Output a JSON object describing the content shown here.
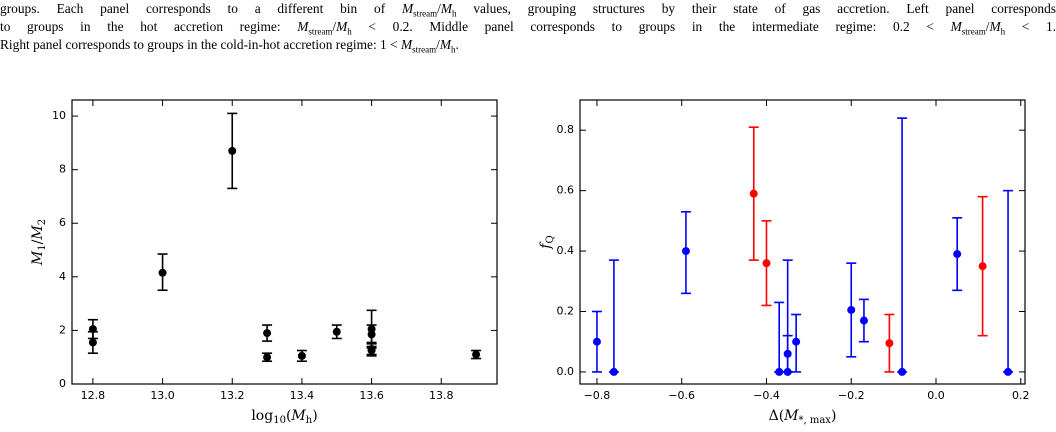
{
  "caption": [
    [
      "groups. Each panel corresponds to a different bin of ",
      {
        "sym": "M",
        "sub": "stream"
      },
      "/",
      {
        "sym": "M",
        "sub": "h"
      },
      " values, grouping structures by their state of gas accretion. Left panel corresponds"
    ],
    [
      "to groups in the hot accretion regime: ",
      {
        "sym": "M",
        "sub": "stream"
      },
      "/",
      {
        "sym": "M",
        "sub": "h"
      },
      " < 0.2. Middle panel corresponds to groups in the intermediate regime: 0.2 < ",
      {
        "sym": "M",
        "sub": "stream"
      },
      "/",
      {
        "sym": "M",
        "sub": "h"
      },
      " < 1."
    ],
    [
      "Right panel corresponds to groups in the cold-in-hot accretion regime: 1 < ",
      {
        "sym": "M",
        "sub": "stream"
      },
      "/",
      {
        "sym": "M",
        "sub": "h"
      },
      "."
    ]
  ],
  "chart_data": [
    {
      "type": "scatter",
      "xlabel": [
        {
          "text": "log",
          "sub": "10"
        },
        "(",
        {
          "sym": "M",
          "sub": "h"
        },
        ")"
      ],
      "ylabel": [
        {
          "sym": "M",
          "sub": "1"
        },
        "/",
        {
          "sym": "M",
          "sub": "2"
        }
      ],
      "xlim": [
        12.74,
        13.96
      ],
      "ylim": [
        0,
        10.6
      ],
      "xticks": [
        {
          "value": 12.8,
          "label": "12.8"
        },
        {
          "value": 13,
          "label": "13.0"
        },
        {
          "value": 13.2,
          "label": "13.2"
        },
        {
          "value": 13.4,
          "label": "13.4"
        },
        {
          "value": 13.6,
          "label": "13.6"
        },
        {
          "value": 13.8,
          "label": "13.8"
        }
      ],
      "yticks": [
        0,
        2,
        4,
        6,
        8,
        10
      ],
      "series": [
        {
          "color": "#000000",
          "x": [
            12.8,
            12.8,
            13.0,
            13.2,
            13.3,
            13.3,
            13.4,
            13.5,
            13.6,
            13.6,
            13.6,
            13.6,
            13.9
          ],
          "y": [
            2.05,
            1.55,
            4.15,
            8.7,
            1.9,
            1.0,
            1.05,
            1.95,
            2.05,
            1.85,
            1.3,
            1.25,
            1.1
          ],
          "ylow": [
            1.7,
            1.15,
            3.5,
            7.3,
            1.6,
            0.85,
            0.85,
            1.7,
            1.35,
            1.5,
            1.1,
            1.05,
            0.95
          ],
          "yhigh": [
            2.4,
            1.95,
            4.85,
            10.1,
            2.2,
            1.15,
            1.25,
            2.2,
            2.75,
            2.2,
            1.55,
            1.4,
            1.25
          ]
        }
      ]
    },
    {
      "type": "scatter",
      "xlabel": [
        "Δ(",
        {
          "sym": "M",
          "sub": "*, max"
        },
        ")"
      ],
      "ylabel": [
        {
          "sym": "f",
          "sub": "Q"
        }
      ],
      "xlim": [
        -0.84,
        0.21
      ],
      "ylim": [
        -0.04,
        0.9
      ],
      "xticks": [
        {
          "value": -0.8,
          "label": "−0.8"
        },
        {
          "value": -0.6,
          "label": "−0.6"
        },
        {
          "value": -0.4,
          "label": "−0.4"
        },
        {
          "value": -0.2,
          "label": "−0.2"
        },
        {
          "value": 0,
          "label": "0.0"
        },
        0.2
      ],
      "yticks": [
        {
          "value": 0,
          "label": "0.0"
        },
        0.2,
        0.4,
        0.6,
        0.8
      ],
      "series": [
        {
          "color": "#0000ff",
          "x": [
            -0.8,
            -0.76,
            -0.59,
            -0.37,
            -0.35,
            -0.35,
            -0.33,
            -0.2,
            -0.17,
            -0.08,
            0.05,
            0.17
          ],
          "y": [
            0.1,
            0.0,
            0.4,
            0.0,
            0.0,
            0.06,
            0.1,
            0.205,
            0.17,
            0.0,
            0.39,
            0.0
          ],
          "ylow": [
            0.0,
            0.0,
            0.26,
            0.0,
            0.0,
            0.0,
            0.0,
            0.05,
            0.1,
            0.0,
            0.27,
            0.0
          ],
          "yhigh": [
            0.2,
            0.37,
            0.53,
            0.23,
            0.37,
            0.12,
            0.19,
            0.36,
            0.24,
            0.84,
            0.51,
            0.6
          ]
        },
        {
          "color": "#ff0000",
          "x": [
            -0.43,
            -0.4,
            -0.11,
            0.11
          ],
          "y": [
            0.59,
            0.36,
            0.095,
            0.35
          ],
          "ylow": [
            0.37,
            0.22,
            0.0,
            0.12
          ],
          "yhigh": [
            0.81,
            0.5,
            0.19,
            0.58
          ]
        }
      ]
    }
  ]
}
